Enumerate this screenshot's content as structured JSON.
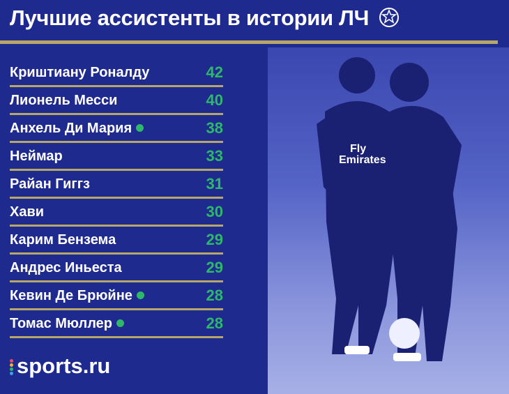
{
  "header": {
    "title": "Лучшие ассистенты в истории ЛЧ"
  },
  "colors": {
    "background": "#1f2a8f",
    "accent_line": "#b9a76a",
    "value_green": "#2db86a"
  },
  "icons": {
    "title_icon": "champions-league-starball-icon"
  },
  "rows": [
    {
      "name": "Криштиану Роналду",
      "value": "42",
      "active": false
    },
    {
      "name": "Лионель Месси",
      "value": "40",
      "active": false
    },
    {
      "name": "Анхель Ди Мария",
      "value": "38",
      "active": true
    },
    {
      "name": "Неймар",
      "value": "33",
      "active": false
    },
    {
      "name": "Райан Гиггз",
      "value": "31",
      "active": false
    },
    {
      "name": "Хави",
      "value": "30",
      "active": false
    },
    {
      "name": "Карим Бензема",
      "value": "29",
      "active": false
    },
    {
      "name": "Андрес Иньеста",
      "value": "29",
      "active": false
    },
    {
      "name": "Кевин Де Брюйне",
      "value": "28",
      "active": true
    },
    {
      "name": "Томас Мюллер",
      "value": "28",
      "active": true
    }
  ],
  "brand": {
    "logo_text": "sports.ru"
  },
  "photo": {
    "description_icon": "football-players-photo-icon",
    "shirt_text": "Fly Emirates"
  }
}
